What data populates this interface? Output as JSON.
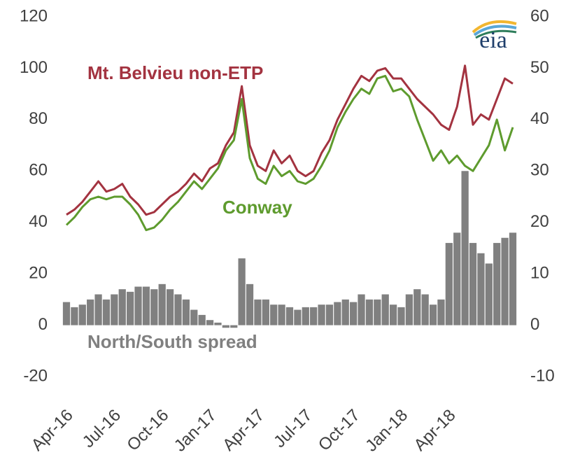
{
  "chart_data": {
    "type": "line",
    "logo": "eia",
    "annotations": [
      "Mt. Belvieu non-ETP",
      "Conway",
      "North/South spread"
    ],
    "categories": [
      "Apr-16",
      null,
      null,
      null,
      null,
      null,
      "Jul-16",
      null,
      null,
      null,
      null,
      null,
      "Oct-16",
      null,
      null,
      null,
      null,
      null,
      "Jan-17",
      null,
      null,
      null,
      null,
      null,
      "Apr-17",
      null,
      null,
      null,
      null,
      null,
      "Jul-17",
      null,
      null,
      null,
      null,
      null,
      "Oct-17",
      null,
      null,
      null,
      null,
      null,
      "Jan-18",
      null,
      null,
      null,
      null,
      null,
      "Apr-18",
      null,
      null,
      null,
      null,
      null,
      null,
      null,
      null
    ],
    "series": [
      {
        "name": "Mt. Belvieu non-ETP",
        "color": "#a33340",
        "type": "line",
        "values": [
          43,
          45,
          48,
          52,
          56,
          52,
          53,
          55,
          50,
          47,
          43,
          44,
          47,
          50,
          52,
          55,
          59,
          56,
          61,
          63,
          70,
          75,
          93,
          70,
          62,
          60,
          68,
          63,
          66,
          60,
          58,
          60,
          67,
          72,
          80,
          86,
          92,
          97,
          95,
          99,
          100,
          96,
          96,
          92,
          88,
          85,
          82,
          78,
          76,
          85,
          101,
          78,
          82,
          80,
          88,
          96,
          94
        ]
      },
      {
        "name": "Conway",
        "color": "#5e9b2e",
        "type": "line",
        "values": [
          39,
          42,
          46,
          49,
          50,
          49,
          50,
          50,
          47,
          43,
          37,
          38,
          41,
          45,
          48,
          52,
          56,
          53,
          57,
          61,
          68,
          72,
          88,
          65,
          57,
          55,
          62,
          58,
          60,
          56,
          55,
          57,
          62,
          68,
          77,
          83,
          88,
          92,
          90,
          96,
          97,
          91,
          92,
          89,
          80,
          72,
          64,
          68,
          63,
          66,
          62,
          60,
          65,
          70,
          80,
          68,
          77
        ]
      },
      {
        "name": "North/South spread",
        "color": "#808080",
        "type": "bar",
        "axis": "y2",
        "values": [
          4.5,
          3.5,
          4,
          5,
          6,
          5,
          6,
          7,
          6.5,
          7.5,
          7.5,
          7,
          8,
          7,
          6,
          5,
          3,
          2,
          1,
          0.5,
          -0.5,
          -0.5,
          13,
          8,
          5,
          5,
          4,
          4,
          3.5,
          3,
          3.5,
          3.5,
          4,
          4,
          4.5,
          5,
          4.5,
          6,
          5,
          5,
          6,
          4,
          3.5,
          6,
          7,
          6,
          4,
          5,
          16,
          18,
          30,
          16,
          14,
          12,
          16,
          17,
          18
        ]
      }
    ],
    "ylim": [
      -20,
      120
    ],
    "yticks": [
      -20,
      0,
      20,
      40,
      60,
      80,
      100,
      120
    ],
    "y2lim": [
      -10,
      60
    ],
    "y2ticks": [
      -10,
      0,
      10,
      20,
      30,
      40,
      50,
      60
    ]
  }
}
